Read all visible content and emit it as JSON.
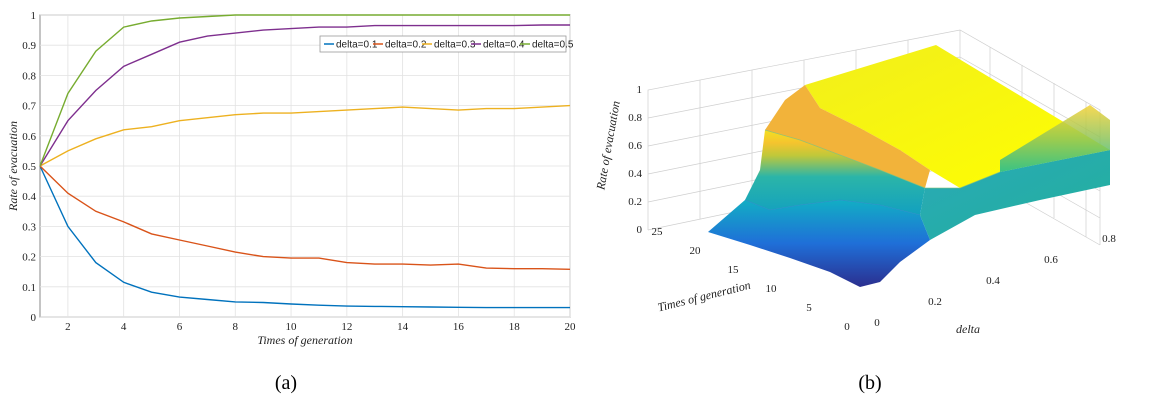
{
  "chart_data": [
    {
      "type": "line",
      "panel_label": "(a)",
      "xlabel": "Times of generation",
      "ylabel": "Rate of evacuation",
      "xlim": [
        1,
        20
      ],
      "ylim": [
        0,
        1
      ],
      "xticks": [
        "2",
        "4",
        "6",
        "8",
        "10",
        "12",
        "14",
        "16",
        "18",
        "20"
      ],
      "yticks": [
        "0",
        "0.1",
        "0.2",
        "0.3",
        "0.4",
        "0.5",
        "0.6",
        "0.7",
        "0.8",
        "0.9",
        "1"
      ],
      "grid": true,
      "legend_position": "top-right",
      "x": [
        1,
        2,
        3,
        4,
        5,
        6,
        7,
        8,
        9,
        10,
        11,
        12,
        13,
        14,
        15,
        16,
        17,
        18,
        19,
        20
      ],
      "series": [
        {
          "name": "delta=0.1",
          "color": "#0072BD",
          "values": [
            0.5,
            0.3,
            0.18,
            0.115,
            0.082,
            0.066,
            0.058,
            0.05,
            0.048,
            0.043,
            0.039,
            0.036,
            0.035,
            0.034,
            0.033,
            0.032,
            0.031,
            0.031,
            0.031,
            0.031
          ]
        },
        {
          "name": "delta=0.2",
          "color": "#D95319",
          "values": [
            0.5,
            0.41,
            0.35,
            0.315,
            0.275,
            0.255,
            0.235,
            0.215,
            0.2,
            0.195,
            0.195,
            0.18,
            0.175,
            0.175,
            0.172,
            0.175,
            0.162,
            0.16,
            0.16,
            0.158
          ]
        },
        {
          "name": "delta=0.3",
          "color": "#EDB120",
          "values": [
            0.5,
            0.55,
            0.59,
            0.62,
            0.63,
            0.65,
            0.66,
            0.67,
            0.675,
            0.675,
            0.68,
            0.685,
            0.69,
            0.695,
            0.69,
            0.685,
            0.69,
            0.69,
            0.695,
            0.7
          ]
        },
        {
          "name": "delta=0.4",
          "color": "#7E2F8E",
          "values": [
            0.5,
            0.65,
            0.75,
            0.83,
            0.87,
            0.91,
            0.93,
            0.94,
            0.95,
            0.955,
            0.96,
            0.96,
            0.965,
            0.965,
            0.965,
            0.965,
            0.965,
            0.965,
            0.967,
            0.967
          ]
        },
        {
          "name": "delta=0.5",
          "color": "#77AC30",
          "values": [
            0.5,
            0.74,
            0.88,
            0.96,
            0.98,
            0.99,
            0.995,
            1.0,
            1.0,
            1.0,
            1.0,
            1.0,
            1.0,
            1.0,
            1.0,
            1.0,
            1.0,
            1.0,
            1.0,
            1.0
          ]
        }
      ]
    },
    {
      "type": "surface",
      "panel_label": "(b)",
      "xlabel": "delta",
      "ylabel": "Times of generation",
      "zlabel": "Rate of evacuation",
      "xticks": [
        "0",
        "0.2",
        "0.4",
        "0.6",
        "0.8"
      ],
      "yticks": [
        "0",
        "5",
        "10",
        "15",
        "20",
        "25"
      ],
      "zticks": [
        "0",
        "0.2",
        "0.4",
        "0.6",
        "0.8",
        "1"
      ],
      "grid": true,
      "colormap": [
        "#3B2F8F",
        "#1F6FD8",
        "#12AEC4",
        "#3FBF8F",
        "#B8C943",
        "#F8E51E",
        "#FFFF00"
      ]
    }
  ]
}
